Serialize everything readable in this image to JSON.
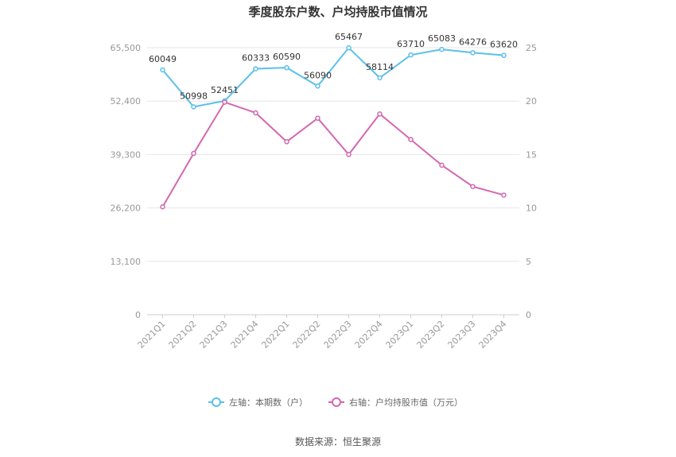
{
  "chart_data": {
    "type": "line",
    "title": "季度股东户数、户均持股市值情况",
    "categories": [
      "2021Q1",
      "2021Q2",
      "2021Q3",
      "2021Q4",
      "2022Q1",
      "2022Q2",
      "2022Q3",
      "2022Q4",
      "2023Q1",
      "2023Q2",
      "2023Q3",
      "2023Q4"
    ],
    "series": [
      {
        "name": "左轴：本期数（户）",
        "axis": "left",
        "color": "#5bc0eb",
        "values": [
          60049,
          50998,
          52451,
          60333,
          60590,
          56090,
          65467,
          58114,
          63710,
          65083,
          64276,
          63620
        ],
        "data_labels": [
          "60049",
          "50998",
          "52451",
          "60333",
          "60590",
          "56090",
          "65467",
          "58114",
          "63710",
          "65083",
          "64276",
          "63620"
        ]
      },
      {
        "name": "右轴：户均持股市值（万元）",
        "axis": "right",
        "color": "#d467b0",
        "values": [
          10.1,
          15.1,
          19.9,
          18.9,
          16.2,
          18.4,
          15.0,
          18.8,
          16.4,
          14.0,
          12.0,
          11.2
        ]
      }
    ],
    "y_left": {
      "ylim": [
        0,
        65500
      ],
      "ticks": [
        0,
        13100,
        26200,
        39300,
        52400,
        65500
      ],
      "tick_labels": [
        "0",
        "13,100",
        "26,200",
        "39,300",
        "52,400",
        "65,500"
      ]
    },
    "y_right": {
      "ylim": [
        0,
        25
      ],
      "ticks": [
        0,
        5,
        10,
        15,
        20,
        25
      ],
      "tick_labels": [
        "0",
        "5",
        "10",
        "15",
        "20",
        "25"
      ]
    },
    "grid": true,
    "legend": "bottom-center"
  },
  "source": "数据来源：恒生聚源"
}
